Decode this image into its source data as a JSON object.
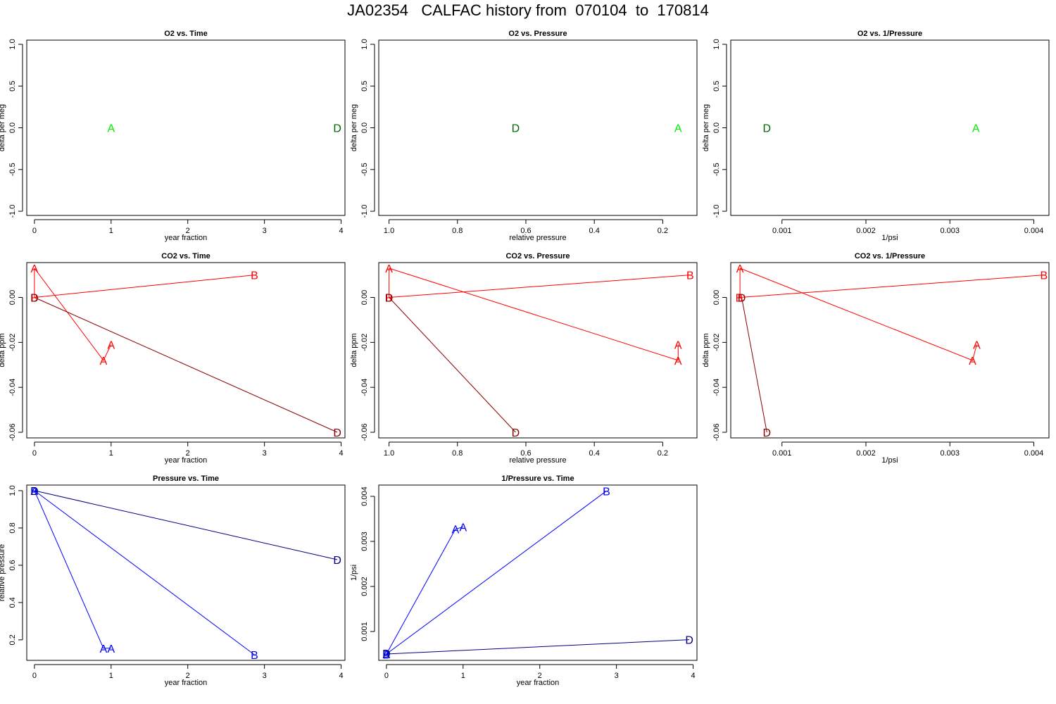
{
  "title": "JA02354   CALFAC history from  070104  to  170814",
  "colors": {
    "axis": "#000000",
    "red": "#ff0000",
    "darkred": "#8b0000",
    "green": "#00ee00",
    "darkgreen": "#006400",
    "blue": "#0000ff",
    "navy": "#000080"
  },
  "chart_data": [
    {
      "id": "o2-time",
      "type": "scatter",
      "title": "O2 vs. Time",
      "xlabel": "year fraction",
      "ylabel": "delta per meg",
      "xlim": [
        -0.1,
        4.05
      ],
      "ylim": [
        -1.05,
        1.05
      ],
      "xticks": [
        0,
        1,
        2,
        3,
        4
      ],
      "xtick_labels": [
        "0",
        "1",
        "2",
        "3",
        "4"
      ],
      "yticks": [
        -1,
        -0.5,
        0,
        0.5,
        1
      ],
      "ytick_labels": [
        "-1.0",
        "-0.5",
        "0.0",
        "0.5",
        "1.0"
      ],
      "points": [
        {
          "label": "A",
          "x": 1.0,
          "y": 0.0,
          "color": "green"
        },
        {
          "label": "D",
          "x": 3.95,
          "y": 0.0,
          "color": "darkgreen"
        }
      ],
      "lines": []
    },
    {
      "id": "o2-pressure",
      "type": "scatter",
      "title": "O2 vs. Pressure",
      "xlabel": "relative pressure",
      "ylabel": "delta per meg",
      "xlim": [
        1.03,
        0.1
      ],
      "ylim": [
        -1.05,
        1.05
      ],
      "xticks": [
        1.0,
        0.8,
        0.6,
        0.4,
        0.2
      ],
      "xtick_labels": [
        "1.0",
        "0.8",
        "0.6",
        "0.4",
        "0.2"
      ],
      "yticks": [
        -1,
        -0.5,
        0,
        0.5,
        1
      ],
      "ytick_labels": [
        "-1.0",
        "-0.5",
        "0.0",
        "0.5",
        "1.0"
      ],
      "points": [
        {
          "label": "D",
          "x": 0.63,
          "y": 0.0,
          "color": "darkgreen"
        },
        {
          "label": "A",
          "x": 0.155,
          "y": 0.0,
          "color": "green"
        }
      ],
      "lines": []
    },
    {
      "id": "o2-invpressure",
      "type": "scatter",
      "title": "O2 vs. 1/Pressure",
      "xlabel": "1/psi",
      "ylabel": "delta per meg",
      "xlim": [
        0.00039,
        0.00418
      ],
      "ylim": [
        -1.05,
        1.05
      ],
      "xticks": [
        0.001,
        0.002,
        0.003,
        0.004
      ],
      "xtick_labels": [
        "0.001",
        "0.002",
        "0.003",
        "0.004"
      ],
      "yticks": [
        -1,
        -0.5,
        0,
        0.5,
        1
      ],
      "ytick_labels": [
        "-1.0",
        "-0.5",
        "0.0",
        "0.5",
        "1.0"
      ],
      "points": [
        {
          "label": "D",
          "x": 0.00082,
          "y": 0.0,
          "color": "darkgreen"
        },
        {
          "label": "A",
          "x": 0.00331,
          "y": 0.0,
          "color": "green"
        }
      ],
      "lines": []
    },
    {
      "id": "co2-time",
      "type": "line",
      "title": "CO2 vs. Time",
      "xlabel": "year fraction",
      "ylabel": "delta ppm",
      "xlim": [
        -0.1,
        4.05
      ],
      "ylim": [
        -0.0625,
        0.0155
      ],
      "xticks": [
        0,
        1,
        2,
        3,
        4
      ],
      "xtick_labels": [
        "0",
        "1",
        "2",
        "3",
        "4"
      ],
      "yticks": [
        -0.06,
        -0.04,
        -0.02,
        0.0
      ],
      "ytick_labels": [
        "-0.06",
        "-0.04",
        "-0.02",
        "0.00"
      ],
      "points": [
        {
          "label": "A",
          "x": 0.0,
          "y": 0.013,
          "color": "red"
        },
        {
          "label": "B",
          "x": 2.87,
          "y": 0.01,
          "color": "red"
        },
        {
          "label": "A",
          "x": 1.0,
          "y": -0.021,
          "color": "red"
        },
        {
          "label": "A",
          "x": 0.9,
          "y": -0.028,
          "color": "red"
        },
        {
          "label": "D",
          "x": 3.95,
          "y": -0.06,
          "color": "darkred"
        },
        {
          "label": "B",
          "x": 0.0,
          "y": 0.0,
          "color": "red"
        },
        {
          "label": "D",
          "x": 0.0,
          "y": 0.0,
          "color": "darkred"
        }
      ],
      "lines": [
        {
          "color": "red",
          "x": [
            0.0,
            0.0
          ],
          "y": [
            0.013,
            0.0
          ]
        },
        {
          "color": "red",
          "x": [
            0.0,
            2.87
          ],
          "y": [
            0.0,
            0.01
          ]
        },
        {
          "color": "red",
          "x": [
            0.0,
            0.9,
            1.0
          ],
          "y": [
            0.013,
            -0.028,
            -0.021
          ]
        },
        {
          "color": "darkred",
          "x": [
            0.0,
            3.95
          ],
          "y": [
            0.0,
            -0.06
          ]
        }
      ]
    },
    {
      "id": "co2-pressure",
      "type": "line",
      "title": "CO2 vs. Pressure",
      "xlabel": "relative pressure",
      "ylabel": "delta ppm",
      "xlim": [
        1.03,
        0.1
      ],
      "ylim": [
        -0.0625,
        0.0155
      ],
      "xticks": [
        1.0,
        0.8,
        0.6,
        0.4,
        0.2
      ],
      "xtick_labels": [
        "1.0",
        "0.8",
        "0.6",
        "0.4",
        "0.2"
      ],
      "yticks": [
        -0.06,
        -0.04,
        -0.02,
        0.0
      ],
      "ytick_labels": [
        "-0.06",
        "-0.04",
        "-0.02",
        "0.00"
      ],
      "points": [
        {
          "label": "A",
          "x": 1.0,
          "y": 0.013,
          "color": "red"
        },
        {
          "label": "B",
          "x": 0.12,
          "y": 0.01,
          "color": "red"
        },
        {
          "label": "A",
          "x": 0.155,
          "y": -0.021,
          "color": "red"
        },
        {
          "label": "A",
          "x": 0.155,
          "y": -0.028,
          "color": "red"
        },
        {
          "label": "D",
          "x": 0.63,
          "y": -0.06,
          "color": "darkred"
        },
        {
          "label": "B",
          "x": 1.0,
          "y": 0.0,
          "color": "red"
        },
        {
          "label": "D",
          "x": 1.0,
          "y": 0.0,
          "color": "darkred"
        }
      ],
      "lines": [
        {
          "color": "red",
          "x": [
            1.0,
            1.0
          ],
          "y": [
            0.013,
            0.0
          ]
        },
        {
          "color": "red",
          "x": [
            1.0,
            0.12
          ],
          "y": [
            0.0,
            0.01
          ]
        },
        {
          "color": "red",
          "x": [
            1.0,
            0.155,
            0.155
          ],
          "y": [
            0.013,
            -0.028,
            -0.021
          ]
        },
        {
          "color": "darkred",
          "x": [
            1.0,
            0.63
          ],
          "y": [
            0.0,
            -0.06
          ]
        }
      ]
    },
    {
      "id": "co2-invpressure",
      "type": "line",
      "title": "CO2 vs. 1/Pressure",
      "xlabel": "1/psi",
      "ylabel": "delta ppm",
      "xlim": [
        0.00039,
        0.00418
      ],
      "ylim": [
        -0.0625,
        0.0155
      ],
      "xticks": [
        0.001,
        0.002,
        0.003,
        0.004
      ],
      "xtick_labels": [
        "0.001",
        "0.002",
        "0.003",
        "0.004"
      ],
      "yticks": [
        -0.06,
        -0.04,
        -0.02,
        0.0
      ],
      "ytick_labels": [
        "-0.06",
        "-0.04",
        "-0.02",
        "0.00"
      ],
      "points": [
        {
          "label": "A",
          "x": 0.0005,
          "y": 0.013,
          "color": "red"
        },
        {
          "label": "B",
          "x": 0.00412,
          "y": 0.01,
          "color": "red"
        },
        {
          "label": "A",
          "x": 0.00332,
          "y": -0.021,
          "color": "red"
        },
        {
          "label": "A",
          "x": 0.00327,
          "y": -0.028,
          "color": "red"
        },
        {
          "label": "D",
          "x": 0.00082,
          "y": -0.06,
          "color": "darkred"
        },
        {
          "label": "B",
          "x": 0.00049,
          "y": 0.0,
          "color": "red"
        },
        {
          "label": "D",
          "x": 0.00052,
          "y": 0.0,
          "color": "darkred"
        }
      ],
      "lines": [
        {
          "color": "red",
          "x": [
            0.0005,
            0.0005
          ],
          "y": [
            0.013,
            0.0
          ]
        },
        {
          "color": "red",
          "x": [
            0.0005,
            0.00412
          ],
          "y": [
            0.0,
            0.01
          ]
        },
        {
          "color": "red",
          "x": [
            0.0005,
            0.00327,
            0.00332
          ],
          "y": [
            0.013,
            -0.028,
            -0.021
          ]
        },
        {
          "color": "darkred",
          "x": [
            0.00052,
            0.00082
          ],
          "y": [
            0.0,
            -0.06
          ]
        }
      ]
    },
    {
      "id": "pressure-time",
      "type": "line",
      "title": "Pressure vs. Time",
      "xlabel": "year fraction",
      "ylabel": "relative pressure",
      "xlim": [
        -0.1,
        4.05
      ],
      "ylim": [
        0.09,
        1.03
      ],
      "xticks": [
        0,
        1,
        2,
        3,
        4
      ],
      "xtick_labels": [
        "0",
        "1",
        "2",
        "3",
        "4"
      ],
      "yticks": [
        0.2,
        0.4,
        0.6,
        0.8,
        1.0
      ],
      "ytick_labels": [
        "0.2",
        "0.4",
        "0.6",
        "0.8",
        "1.0"
      ],
      "points": [
        {
          "label": "A",
          "x": 0.9,
          "y": 0.155,
          "color": "blue"
        },
        {
          "label": "A",
          "x": 1.0,
          "y": 0.155,
          "color": "blue"
        },
        {
          "label": "B",
          "x": 2.87,
          "y": 0.12,
          "color": "blue"
        },
        {
          "label": "D",
          "x": 3.95,
          "y": 0.63,
          "color": "navy"
        },
        {
          "label": "A",
          "x": 0.0,
          "y": 1.0,
          "color": "blue"
        },
        {
          "label": "B",
          "x": 0.0,
          "y": 1.0,
          "color": "blue"
        },
        {
          "label": "D",
          "x": 0.0,
          "y": 1.0,
          "color": "navy"
        }
      ],
      "lines": [
        {
          "color": "blue",
          "x": [
            0.0,
            0.9,
            1.0
          ],
          "y": [
            1.0,
            0.155,
            0.155
          ]
        },
        {
          "color": "blue",
          "x": [
            0.0,
            2.87
          ],
          "y": [
            1.0,
            0.12
          ]
        },
        {
          "color": "navy",
          "x": [
            0.0,
            3.95
          ],
          "y": [
            1.0,
            0.63
          ]
        }
      ]
    },
    {
      "id": "invpressure-time",
      "type": "line",
      "title": "1/Pressure vs. Time",
      "xlabel": "year fraction",
      "ylabel": "1/psi",
      "xlim": [
        -0.1,
        4.05
      ],
      "ylim": [
        0.00036,
        0.00425
      ],
      "xticks": [
        0,
        1,
        2,
        3,
        4
      ],
      "xtick_labels": [
        "0",
        "1",
        "2",
        "3",
        "4"
      ],
      "yticks": [
        0.001,
        0.002,
        0.003,
        0.004
      ],
      "ytick_labels": [
        "0.001",
        "0.002",
        "0.003",
        "0.004"
      ],
      "points": [
        {
          "label": "A",
          "x": 0.9,
          "y": 0.00327,
          "color": "blue"
        },
        {
          "label": "A",
          "x": 1.0,
          "y": 0.00332,
          "color": "blue"
        },
        {
          "label": "B",
          "x": 2.87,
          "y": 0.00412,
          "color": "blue"
        },
        {
          "label": "D",
          "x": 3.95,
          "y": 0.00082,
          "color": "navy"
        },
        {
          "label": "A",
          "x": 0.0,
          "y": 0.0005,
          "color": "blue"
        },
        {
          "label": "B",
          "x": 0.0,
          "y": 0.00049,
          "color": "blue"
        },
        {
          "label": "D",
          "x": 0.0,
          "y": 0.00052,
          "color": "navy"
        }
      ],
      "lines": [
        {
          "color": "blue",
          "x": [
            0.0,
            0.9,
            1.0
          ],
          "y": [
            0.0005,
            0.00327,
            0.00332
          ]
        },
        {
          "color": "blue",
          "x": [
            0.0,
            2.87
          ],
          "y": [
            0.0005,
            0.00412
          ]
        },
        {
          "color": "navy",
          "x": [
            0.0,
            3.95
          ],
          "y": [
            0.0005,
            0.00082
          ]
        }
      ]
    }
  ]
}
